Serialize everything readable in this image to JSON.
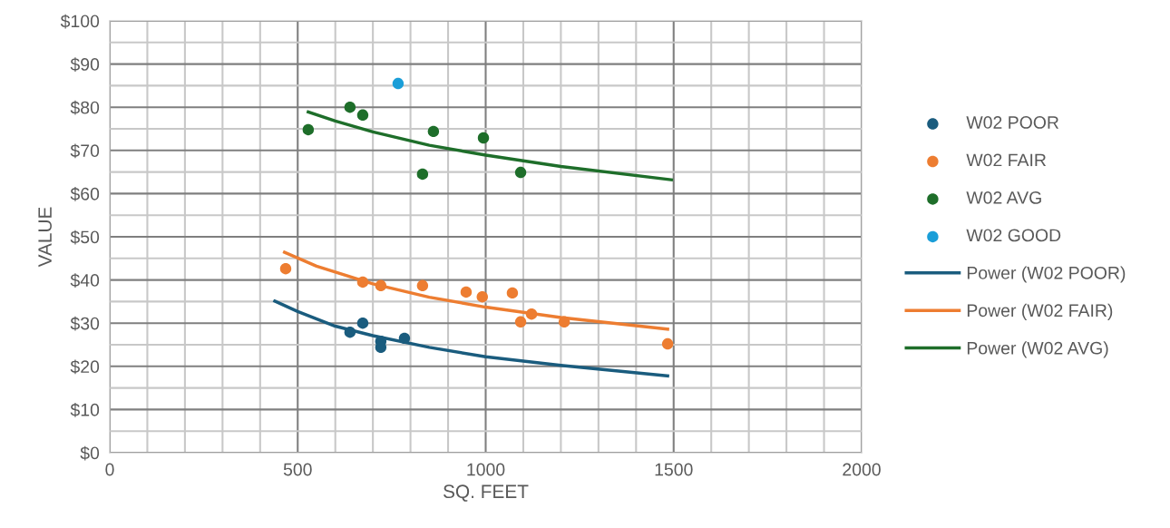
{
  "chart_data": {
    "type": "scatter",
    "xlabel": "SQ. FEET",
    "ylabel": "VALUE",
    "legend": "right",
    "grid": true,
    "marker": "circle",
    "xlim": [
      0,
      2000
    ],
    "ylim": [
      0,
      100
    ],
    "xticks": [
      0,
      {
        "value": 100,
        "label": null
      },
      {
        "value": 200,
        "label": null
      },
      {
        "value": 300,
        "label": null
      },
      {
        "value": 400,
        "label": null
      },
      500,
      {
        "value": 600,
        "label": null
      },
      {
        "value": 700,
        "label": null
      },
      {
        "value": 800,
        "label": null
      },
      {
        "value": 900,
        "label": null
      },
      1000,
      {
        "value": 1100,
        "label": null
      },
      {
        "value": 1200,
        "label": null
      },
      {
        "value": 1300,
        "label": null
      },
      {
        "value": 1400,
        "label": null
      },
      1500,
      {
        "value": 1600,
        "label": null
      },
      {
        "value": 1700,
        "label": null
      },
      {
        "value": 1800,
        "label": null
      },
      {
        "value": 1900,
        "label": null
      },
      2000
    ],
    "yticks": [
      {
        "value": 0,
        "label": "$0"
      },
      {
        "value": 5,
        "label": null
      },
      {
        "value": 10,
        "label": "$10"
      },
      {
        "value": 15,
        "label": null
      },
      {
        "value": 20,
        "label": "$20"
      },
      {
        "value": 25,
        "label": null
      },
      {
        "value": 30,
        "label": "$30"
      },
      {
        "value": 35,
        "label": null
      },
      {
        "value": 40,
        "label": "$40"
      },
      {
        "value": 45,
        "label": null
      },
      {
        "value": 50,
        "label": "$50"
      },
      {
        "value": 55,
        "label": null
      },
      {
        "value": 60,
        "label": "$60"
      },
      {
        "value": 65,
        "label": null
      },
      {
        "value": 70,
        "label": "$70"
      },
      {
        "value": 75,
        "label": null
      },
      {
        "value": 80,
        "label": "$80"
      },
      {
        "value": 85,
        "label": null
      },
      {
        "value": 90,
        "label": "$90"
      },
      {
        "value": 95,
        "label": null
      },
      {
        "value": 100,
        "label": "$100"
      }
    ],
    "series": [
      {
        "name": "W02 POOR",
        "color": "#1a5c7e",
        "x": [
          639,
          673,
          721,
          721,
          784
        ],
        "values": [
          27.9,
          30.0,
          25.8,
          24.4,
          26.5
        ]
      },
      {
        "name": "W02 FAIR",
        "color": "#ed7d31",
        "x": [
          468,
          673,
          721,
          832,
          948,
          991,
          1071,
          1093,
          1122,
          1209,
          1484
        ],
        "values": [
          42.6,
          39.5,
          38.7,
          38.7,
          37.2,
          36.1,
          37.0,
          30.3,
          32.1,
          30.3,
          25.2
        ]
      },
      {
        "name": "W02 AVG",
        "color": "#1e6e2a",
        "x": [
          528,
          639,
          673,
          832,
          861,
          994,
          1093
        ],
        "values": [
          74.8,
          80.0,
          78.2,
          64.5,
          74.4,
          72.9,
          64.9
        ]
      },
      {
        "name": "W02 GOOD",
        "color": "#1a9ed8",
        "x": [
          767
        ],
        "values": [
          85.5
        ]
      },
      {
        "name": "Power (W02 POOR)",
        "type": "line",
        "marker": "none",
        "color": "#1a5c7e",
        "x": [
          439,
          500,
          600,
          700,
          850,
          1000,
          1200,
          1484
        ],
        "values": [
          35.1,
          32.7,
          29.3,
          27.1,
          24.4,
          22.2,
          20.2,
          17.8
        ]
      },
      {
        "name": "Power (W02 FAIR)",
        "type": "line",
        "marker": "none",
        "color": "#ed7d31",
        "x": [
          465,
          550,
          700,
          850,
          1000,
          1200,
          1484
        ],
        "values": [
          46.4,
          43.2,
          39.1,
          36.0,
          33.7,
          31.3,
          28.6
        ]
      },
      {
        "name": "Power (W02 AVG)",
        "type": "line",
        "marker": "none",
        "color": "#1e6e2a",
        "x": [
          528,
          600,
          700,
          850,
          1000,
          1200,
          1494
        ],
        "values": [
          78.9,
          76.8,
          74.3,
          71.2,
          68.9,
          66.3,
          63.2
        ]
      }
    ]
  }
}
